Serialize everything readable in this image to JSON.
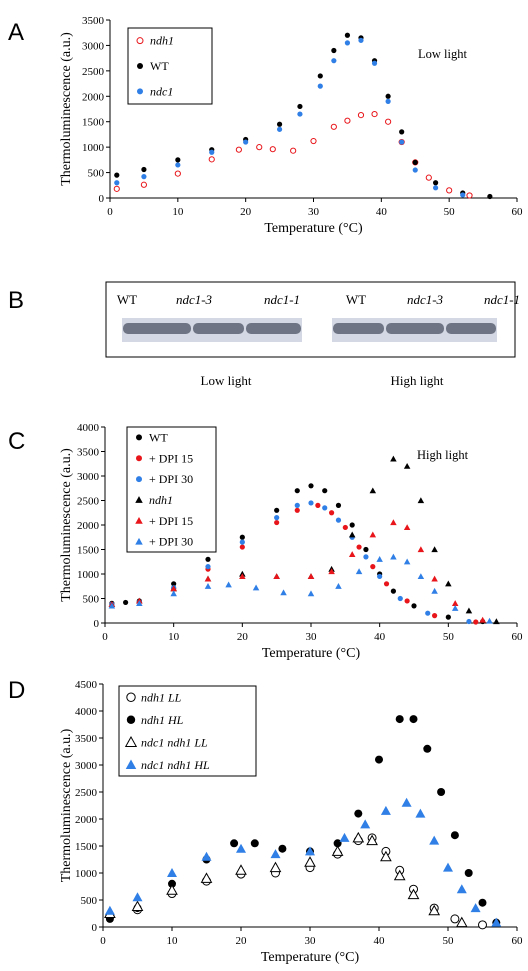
{
  "figure": {
    "panels": [
      {
        "letter": "A",
        "note": "Low light"
      },
      {
        "letter": "B"
      },
      {
        "letter": "C",
        "note": "High light"
      },
      {
        "letter": "D"
      }
    ]
  },
  "blot": {
    "lanes": [
      "WT",
      "ndc1-3",
      "ndc1-1",
      "WT",
      "ndc1-3",
      "ndc1-1"
    ],
    "captions": [
      "Low light",
      "High light"
    ]
  },
  "colors": {
    "black": "#000000",
    "red": "#e8161b",
    "blue": "#2f7fe6"
  },
  "chart_data": [
    {
      "panel": "A",
      "type": "scatter",
      "xlabel": "Temperature  (°C)",
      "ylabel": "Thermoluminescence (a.u.)",
      "xlim": [
        0,
        60
      ],
      "ylim": [
        0,
        3500
      ],
      "xticks": [
        0,
        10,
        20,
        30,
        40,
        50,
        60
      ],
      "yticks": [
        0,
        500,
        1000,
        1500,
        2000,
        2500,
        3000,
        3500
      ],
      "legend_position": "top-left",
      "series": [
        {
          "name": "ndh1",
          "italic": true,
          "marker": "open-circle",
          "color": "#e8161b",
          "points": [
            [
              1,
              180
            ],
            [
              5,
              260
            ],
            [
              10,
              480
            ],
            [
              15,
              760
            ],
            [
              19,
              950
            ],
            [
              22,
              1000
            ],
            [
              24,
              960
            ],
            [
              27,
              930
            ],
            [
              30,
              1120
            ],
            [
              33,
              1400
            ],
            [
              35,
              1520
            ],
            [
              37,
              1630
            ],
            [
              39,
              1650
            ],
            [
              41,
              1500
            ],
            [
              43,
              1100
            ],
            [
              45,
              700
            ],
            [
              47,
              400
            ],
            [
              50,
              150
            ],
            [
              53,
              50
            ]
          ]
        },
        {
          "name": "WT",
          "italic": false,
          "marker": "filled-circle",
          "color": "#000000",
          "points": [
            [
              1,
              450
            ],
            [
              5,
              560
            ],
            [
              10,
              750
            ],
            [
              15,
              950
            ],
            [
              20,
              1150
            ],
            [
              25,
              1450
            ],
            [
              28,
              1800
            ],
            [
              31,
              2400
            ],
            [
              33,
              2900
            ],
            [
              35,
              3200
            ],
            [
              37,
              3150
            ],
            [
              39,
              2700
            ],
            [
              41,
              2000
            ],
            [
              43,
              1300
            ],
            [
              45,
              700
            ],
            [
              48,
              300
            ],
            [
              52,
              100
            ],
            [
              56,
              30
            ]
          ]
        },
        {
          "name": "ndc1",
          "italic": true,
          "marker": "filled-circle",
          "color": "#2f7fe6",
          "points": [
            [
              1,
              300
            ],
            [
              5,
              420
            ],
            [
              10,
              650
            ],
            [
              15,
              900
            ],
            [
              20,
              1100
            ],
            [
              25,
              1350
            ],
            [
              28,
              1650
            ],
            [
              31,
              2200
            ],
            [
              33,
              2700
            ],
            [
              35,
              3050
            ],
            [
              37,
              3100
            ],
            [
              39,
              2650
            ],
            [
              41,
              1900
            ],
            [
              43,
              1100
            ],
            [
              45,
              550
            ],
            [
              48,
              200
            ],
            [
              52,
              60
            ]
          ]
        }
      ]
    },
    {
      "panel": "C",
      "type": "scatter",
      "xlabel": "Temperature  (°C)",
      "ylabel": "Thermoluminescence  (a.u.)",
      "xlim": [
        0,
        60
      ],
      "ylim": [
        0,
        4000
      ],
      "xticks": [
        0,
        10,
        20,
        30,
        40,
        50,
        60
      ],
      "yticks": [
        0,
        500,
        1000,
        1500,
        2000,
        2500,
        3000,
        3500,
        4000
      ],
      "legend_position": "top-left",
      "series": [
        {
          "name": "WT",
          "italic": false,
          "marker": "filled-circle",
          "color": "#000000",
          "points": [
            [
              1,
              400
            ],
            [
              3,
              420
            ],
            [
              5,
              450
            ],
            [
              10,
              800
            ],
            [
              15,
              1300
            ],
            [
              20,
              1750
            ],
            [
              25,
              2300
            ],
            [
              28,
              2700
            ],
            [
              30,
              2800
            ],
            [
              32,
              2700
            ],
            [
              34,
              2400
            ],
            [
              36,
              2000
            ],
            [
              38,
              1500
            ],
            [
              40,
              1000
            ],
            [
              42,
              650
            ],
            [
              45,
              350
            ],
            [
              50,
              120
            ],
            [
              55,
              30
            ]
          ]
        },
        {
          "name": "+ DPI 15",
          "italic": false,
          "marker": "filled-circle",
          "color": "#e8161b",
          "points": [
            [
              1,
              380
            ],
            [
              5,
              430
            ],
            [
              10,
              700
            ],
            [
              15,
              1100
            ],
            [
              20,
              1550
            ],
            [
              25,
              2050
            ],
            [
              28,
              2300
            ],
            [
              31,
              2400
            ],
            [
              33,
              2250
            ],
            [
              35,
              1950
            ],
            [
              37,
              1550
            ],
            [
              39,
              1150
            ],
            [
              41,
              800
            ],
            [
              44,
              450
            ],
            [
              48,
              150
            ],
            [
              54,
              20
            ]
          ]
        },
        {
          "name": "+ DPI 30",
          "italic": false,
          "marker": "filled-circle",
          "color": "#2f7fe6",
          "points": [
            [
              1,
              380
            ],
            [
              5,
              430
            ],
            [
              10,
              720
            ],
            [
              15,
              1150
            ],
            [
              20,
              1650
            ],
            [
              25,
              2150
            ],
            [
              28,
              2400
            ],
            [
              30,
              2450
            ],
            [
              32,
              2350
            ],
            [
              34,
              2100
            ],
            [
              36,
              1750
            ],
            [
              38,
              1350
            ],
            [
              40,
              950
            ],
            [
              43,
              500
            ],
            [
              47,
              200
            ],
            [
              53,
              30
            ]
          ]
        },
        {
          "name": "ndh1",
          "italic": true,
          "marker": "filled-triangle",
          "color": "#000000",
          "points": [
            [
              1,
              380
            ],
            [
              5,
              450
            ],
            [
              10,
              700
            ],
            [
              15,
              900
            ],
            [
              20,
              1000
            ],
            [
              25,
              950
            ],
            [
              30,
              950
            ],
            [
              33,
              1100
            ],
            [
              36,
              1800
            ],
            [
              39,
              2700
            ],
            [
              42,
              3350
            ],
            [
              44,
              3200
            ],
            [
              46,
              2500
            ],
            [
              48,
              1500
            ],
            [
              50,
              800
            ],
            [
              53,
              250
            ],
            [
              57,
              30
            ]
          ]
        },
        {
          "name": "+ DPI 15",
          "italic": false,
          "marker": "filled-triangle",
          "color": "#e8161b",
          "points": [
            [
              1,
              380
            ],
            [
              5,
              450
            ],
            [
              10,
              700
            ],
            [
              15,
              900
            ],
            [
              20,
              950
            ],
            [
              25,
              950
            ],
            [
              30,
              950
            ],
            [
              33,
              1050
            ],
            [
              36,
              1400
            ],
            [
              39,
              1800
            ],
            [
              42,
              2050
            ],
            [
              44,
              1950
            ],
            [
              46,
              1500
            ],
            [
              48,
              900
            ],
            [
              51,
              400
            ],
            [
              55,
              60
            ]
          ]
        },
        {
          "name": "+ DPI 30",
          "italic": false,
          "marker": "filled-triangle",
          "color": "#2f7fe6",
          "points": [
            [
              1,
              350
            ],
            [
              5,
              400
            ],
            [
              10,
              600
            ],
            [
              15,
              750
            ],
            [
              18,
              780
            ],
            [
              22,
              720
            ],
            [
              26,
              620
            ],
            [
              30,
              600
            ],
            [
              34,
              750
            ],
            [
              37,
              1050
            ],
            [
              40,
              1300
            ],
            [
              42,
              1350
            ],
            [
              44,
              1250
            ],
            [
              46,
              950
            ],
            [
              48,
              650
            ],
            [
              51,
              300
            ],
            [
              56,
              40
            ]
          ]
        }
      ]
    },
    {
      "panel": "D",
      "type": "scatter",
      "xlabel": "Temperature (°C)",
      "ylabel": "Thermoluminescence (a.u.)",
      "xlim": [
        0,
        60
      ],
      "ylim": [
        0,
        4500
      ],
      "xticks": [
        0,
        10,
        20,
        30,
        40,
        50,
        60
      ],
      "yticks": [
        0,
        500,
        1000,
        1500,
        2000,
        2500,
        3000,
        3500,
        4000,
        4500
      ],
      "legend_position": "top-left",
      "series": [
        {
          "name": "ndh1 LL",
          "italic": true,
          "marker": "open-circle",
          "color": "#000000",
          "points": [
            [
              1,
              200
            ],
            [
              5,
              320
            ],
            [
              10,
              620
            ],
            [
              15,
              850
            ],
            [
              20,
              980
            ],
            [
              25,
              1000
            ],
            [
              30,
              1100
            ],
            [
              34,
              1350
            ],
            [
              37,
              1600
            ],
            [
              39,
              1650
            ],
            [
              41,
              1400
            ],
            [
              43,
              1050
            ],
            [
              45,
              700
            ],
            [
              48,
              350
            ],
            [
              51,
              150
            ],
            [
              55,
              40
            ]
          ]
        },
        {
          "name": "ndh1 HL",
          "italic": true,
          "marker": "filled-circle",
          "color": "#000000",
          "points": [
            [
              1,
              150
            ],
            [
              5,
              350
            ],
            [
              10,
              800
            ],
            [
              15,
              1250
            ],
            [
              19,
              1550
            ],
            [
              22,
              1550
            ],
            [
              26,
              1450
            ],
            [
              30,
              1400
            ],
            [
              34,
              1550
            ],
            [
              37,
              2100
            ],
            [
              40,
              3100
            ],
            [
              43,
              3850
            ],
            [
              45,
              3850
            ],
            [
              47,
              3300
            ],
            [
              49,
              2500
            ],
            [
              51,
              1700
            ],
            [
              53,
              1000
            ],
            [
              55,
              450
            ],
            [
              57,
              80
            ]
          ]
        },
        {
          "name": "ndc1 ndh1 LL",
          "italic": true,
          "marker": "open-triangle",
          "color": "#000000",
          "points": [
            [
              1,
              250
            ],
            [
              5,
              380
            ],
            [
              10,
              680
            ],
            [
              15,
              900
            ],
            [
              20,
              1050
            ],
            [
              25,
              1100
            ],
            [
              30,
              1200
            ],
            [
              34,
              1400
            ],
            [
              37,
              1650
            ],
            [
              39,
              1600
            ],
            [
              41,
              1300
            ],
            [
              43,
              950
            ],
            [
              45,
              600
            ],
            [
              48,
              300
            ],
            [
              52,
              80
            ]
          ]
        },
        {
          "name": "ndc1 ndh1 HL",
          "italic": true,
          "marker": "filled-triangle",
          "color": "#2f7fe6",
          "points": [
            [
              1,
              300
            ],
            [
              5,
              550
            ],
            [
              10,
              1000
            ],
            [
              15,
              1300
            ],
            [
              20,
              1450
            ],
            [
              25,
              1350
            ],
            [
              30,
              1400
            ],
            [
              35,
              1650
            ],
            [
              38,
              1900
            ],
            [
              41,
              2150
            ],
            [
              44,
              2300
            ],
            [
              46,
              2100
            ],
            [
              48,
              1600
            ],
            [
              50,
              1100
            ],
            [
              52,
              700
            ],
            [
              54,
              350
            ],
            [
              57,
              80
            ]
          ]
        }
      ]
    }
  ]
}
